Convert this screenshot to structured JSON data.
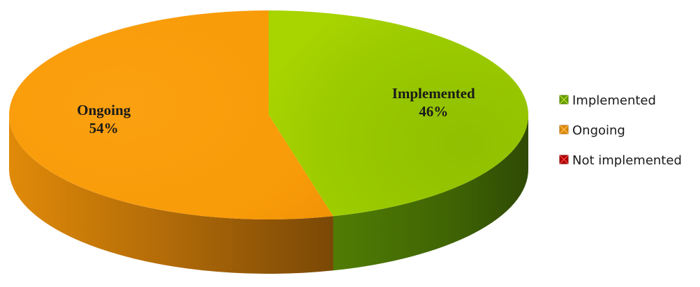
{
  "chart_data": {
    "type": "pie",
    "style": "3d",
    "title": "",
    "slices": [
      {
        "name": "Implemented",
        "value": 46,
        "label_name": "Implemented",
        "label_value": "46%",
        "color": "#99c600"
      },
      {
        "name": "Ongoing",
        "value": 54,
        "label_name": "Ongoing",
        "label_value": "54%",
        "color": "#f89b08"
      },
      {
        "name": "Not implemented",
        "value": 0,
        "color": "#c00000"
      }
    ],
    "legend": {
      "position": "right",
      "entries": [
        "Implemented",
        "Ongoing",
        "Not implemented"
      ]
    }
  }
}
